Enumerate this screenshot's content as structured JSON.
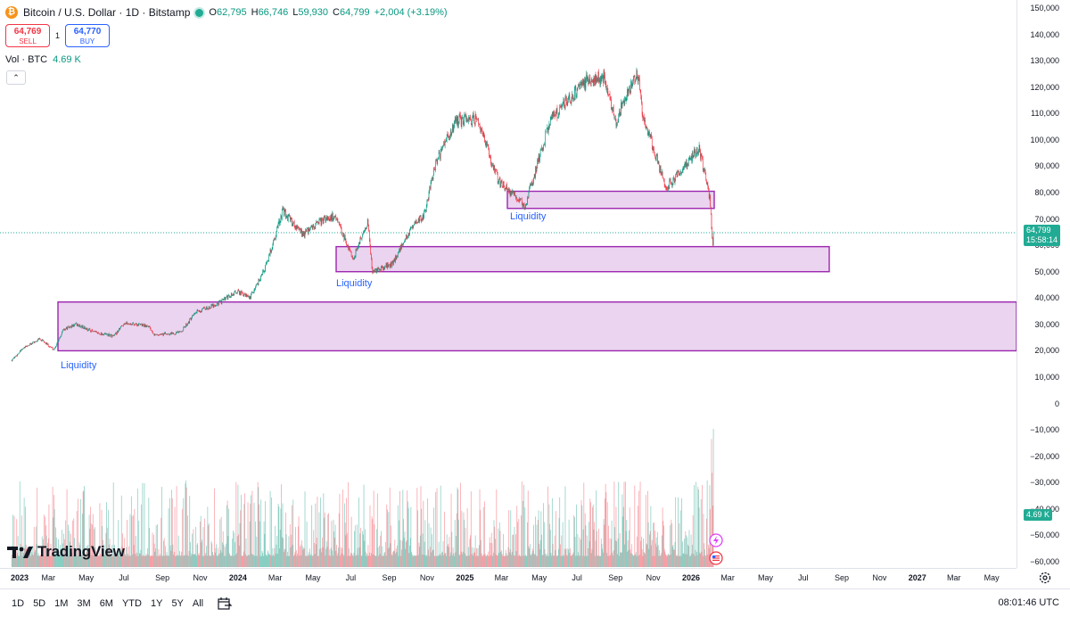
{
  "header": {
    "symbol_icon_glyph": "₿",
    "title": "Bitcoin / U.S. Dollar · 1D · Bitstamp",
    "ohlc": [
      {
        "key": "O",
        "value": "62,795"
      },
      {
        "key": "H",
        "value": "66,746"
      },
      {
        "key": "L",
        "value": "59,930"
      },
      {
        "key": "C",
        "value": "64,799"
      }
    ],
    "change": "+2,004 (+3.19%)",
    "up_color": "#089981"
  },
  "trade": {
    "sell_price": "64,769",
    "sell_label": "SELL",
    "spread": "1",
    "buy_price": "64,770",
    "buy_label": "BUY"
  },
  "volume_legend": {
    "label": "Vol · BTC",
    "value": "4.69 K"
  },
  "collapse_glyph": "⌃",
  "price_axis": {
    "ticks": [
      "150,000",
      "140,000",
      "130,000",
      "120,000",
      "110,000",
      "100,000",
      "90,000",
      "80,000",
      "70,000",
      "60,000",
      "50,000",
      "40,000",
      "30,000",
      "20,000",
      "10,000",
      "0",
      "−10,000",
      "−20,000",
      "−30,000",
      "−40,000",
      "−50,000",
      "−60,000"
    ],
    "last_price": "64,799",
    "countdown": "15:58:14",
    "volume_label": "4.69 K"
  },
  "time_axis": {
    "ticks": [
      {
        "label": "2023",
        "year": true
      },
      {
        "label": "Mar",
        "year": false
      },
      {
        "label": "May",
        "year": false
      },
      {
        "label": "Jul",
        "year": false
      },
      {
        "label": "Sep",
        "year": false
      },
      {
        "label": "Nov",
        "year": false
      },
      {
        "label": "2024",
        "year": true
      },
      {
        "label": "Mar",
        "year": false
      },
      {
        "label": "May",
        "year": false
      },
      {
        "label": "Jul",
        "year": false
      },
      {
        "label": "Sep",
        "year": false
      },
      {
        "label": "Nov",
        "year": false
      },
      {
        "label": "2025",
        "year": true
      },
      {
        "label": "Mar",
        "year": false
      },
      {
        "label": "May",
        "year": false
      },
      {
        "label": "Jul",
        "year": false
      },
      {
        "label": "Sep",
        "year": false
      },
      {
        "label": "Nov",
        "year": false
      },
      {
        "label": "2026",
        "year": true
      },
      {
        "label": "Mar",
        "year": false
      },
      {
        "label": "May",
        "year": false
      },
      {
        "label": "Jul",
        "year": false
      },
      {
        "label": "Sep",
        "year": false
      },
      {
        "label": "Nov",
        "year": false
      },
      {
        "label": "2027",
        "year": true
      },
      {
        "label": "Mar",
        "year": false
      },
      {
        "label": "May",
        "year": false
      }
    ]
  },
  "zones": [
    {
      "label": "Liquidity",
      "low": 20000,
      "high": 38500
    },
    {
      "label": "Liquidity",
      "low": 50000,
      "high": 59500
    },
    {
      "label": "Liquidity",
      "low": 74000,
      "high": 80500
    }
  ],
  "zone_color": "#9c27b0",
  "logo": {
    "text": "TradingView"
  },
  "toolbar": {
    "ranges": [
      "1D",
      "5D",
      "1M",
      "3M",
      "6M",
      "YTD",
      "1Y",
      "5Y",
      "All"
    ],
    "clock": "08:01:46 UTC"
  },
  "chart_data": {
    "type": "candlestick",
    "series_name": "Bitcoin / U.S. Dollar",
    "ylim": [
      -60000,
      150000
    ],
    "x_range": [
      "2023-01",
      "2027-05"
    ],
    "price_path": [
      [
        "2023-01-01",
        16500
      ],
      [
        "2023-01-20",
        21000
      ],
      [
        "2023-02-15",
        24500
      ],
      [
        "2023-03-10",
        20500
      ],
      [
        "2023-03-25",
        28000
      ],
      [
        "2023-04-15",
        30000
      ],
      [
        "2023-05-15",
        27000
      ],
      [
        "2023-06-15",
        25500
      ],
      [
        "2023-07-01",
        30500
      ],
      [
        "2023-08-10",
        29500
      ],
      [
        "2023-08-20",
        26000
      ],
      [
        "2023-09-30",
        27000
      ],
      [
        "2023-10-25",
        34500
      ],
      [
        "2023-11-30",
        38000
      ],
      [
        "2023-12-31",
        42500
      ],
      [
        "2024-01-20",
        40000
      ],
      [
        "2024-02-15",
        52000
      ],
      [
        "2024-03-13",
        73000
      ],
      [
        "2024-04-15",
        64000
      ],
      [
        "2024-05-20",
        70000
      ],
      [
        "2024-06-05",
        71000
      ],
      [
        "2024-07-05",
        55000
      ],
      [
        "2024-07-28",
        69000
      ],
      [
        "2024-08-05",
        50000
      ],
      [
        "2024-09-06",
        53000
      ],
      [
        "2024-09-30",
        64000
      ],
      [
        "2024-10-28",
        72000
      ],
      [
        "2024-11-13",
        90000
      ],
      [
        "2024-12-17",
        107000
      ],
      [
        "2025-01-20",
        108000
      ],
      [
        "2025-02-25",
        84000
      ],
      [
        "2025-04-08",
        75000
      ],
      [
        "2025-05-20",
        108000
      ],
      [
        "2025-07-14",
        122000
      ],
      [
        "2025-08-14",
        124000
      ],
      [
        "2025-09-01",
        107000
      ],
      [
        "2025-10-06",
        126000
      ],
      [
        "2025-10-15",
        110000
      ],
      [
        "2025-11-21",
        82000
      ],
      [
        "2025-12-15",
        88000
      ],
      [
        "2026-01-14",
        97000
      ],
      [
        "2026-01-31",
        78000
      ],
      [
        "2026-02-05",
        60000
      ],
      [
        "2026-02-06",
        64799
      ]
    ],
    "volume_max_btc": 15000,
    "last_close": 64799
  }
}
